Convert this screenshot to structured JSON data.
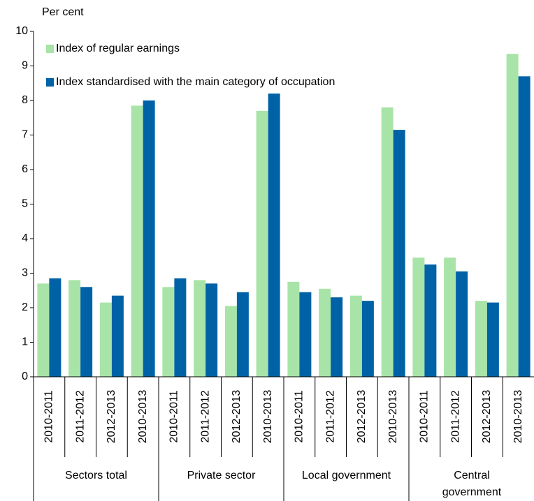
{
  "chart_data": {
    "type": "bar",
    "y_label": "Per cent",
    "categories": [
      "2010-2011",
      "2011-2012",
      "2012-2013",
      "2010-2013",
      "2010-2011",
      "2011-2012",
      "2012-2013",
      "2010-2013",
      "2010-2011",
      "2011-2012",
      "2012-2013",
      "2010-2013",
      "2010-2011",
      "2011-2012",
      "2012-2013",
      "2010-2013"
    ],
    "groups": [
      "Sectors total",
      "Private sector",
      "Local government",
      "Central government"
    ],
    "series": [
      {
        "name": "Index of regular earnings",
        "color": "#a8e4a8",
        "values": [
          2.7,
          2.8,
          2.15,
          7.85,
          2.6,
          2.8,
          2.05,
          7.7,
          2.75,
          2.55,
          2.35,
          7.8,
          3.45,
          3.45,
          2.2,
          9.35
        ]
      },
      {
        "name": "Index standardised with the main category of occupation",
        "color": "#0062a6",
        "values": [
          2.85,
          2.6,
          2.35,
          8.0,
          2.85,
          2.7,
          2.45,
          8.2,
          2.45,
          2.3,
          2.2,
          7.15,
          3.25,
          3.05,
          2.15,
          8.7
        ]
      }
    ],
    "ylim": [
      0,
      10
    ],
    "yticks": [
      0,
      1,
      2,
      3,
      4,
      5,
      6,
      7,
      8,
      9,
      10
    ]
  }
}
